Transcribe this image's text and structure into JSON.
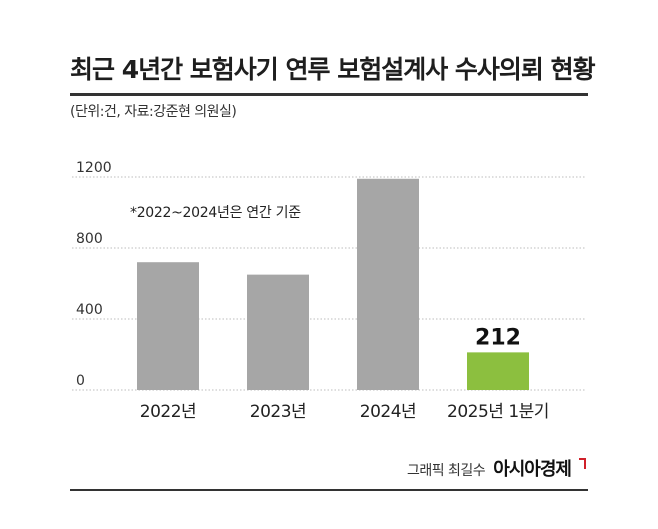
{
  "chart_data": {
    "type": "bar",
    "title": "최근 4년간 보험사기 연루 보험설계사 수사의뢰 현황",
    "subtitle": "(단위:건, 자료:강준현 의원실)",
    "annotation": "*2022~2024년은 연간 기준",
    "categories": [
      "2022년",
      "2023년",
      "2024년",
      "2025년 1분기"
    ],
    "values": [
      720,
      650,
      1190,
      212
    ],
    "value_labels": [
      "",
      "",
      "",
      "212"
    ],
    "y_ticks": [
      "0",
      "400",
      "800",
      "1200"
    ],
    "y_tick_values": [
      0,
      400,
      800,
      1200
    ],
    "ylim": [
      0,
      1200
    ],
    "colors": [
      "#a6a6a6",
      "#a6a6a6",
      "#a6a6a6",
      "#8cbf3f"
    ],
    "grid": true
  },
  "credit": {
    "byline": "그래픽 최길수",
    "brand": "아시아경제"
  }
}
